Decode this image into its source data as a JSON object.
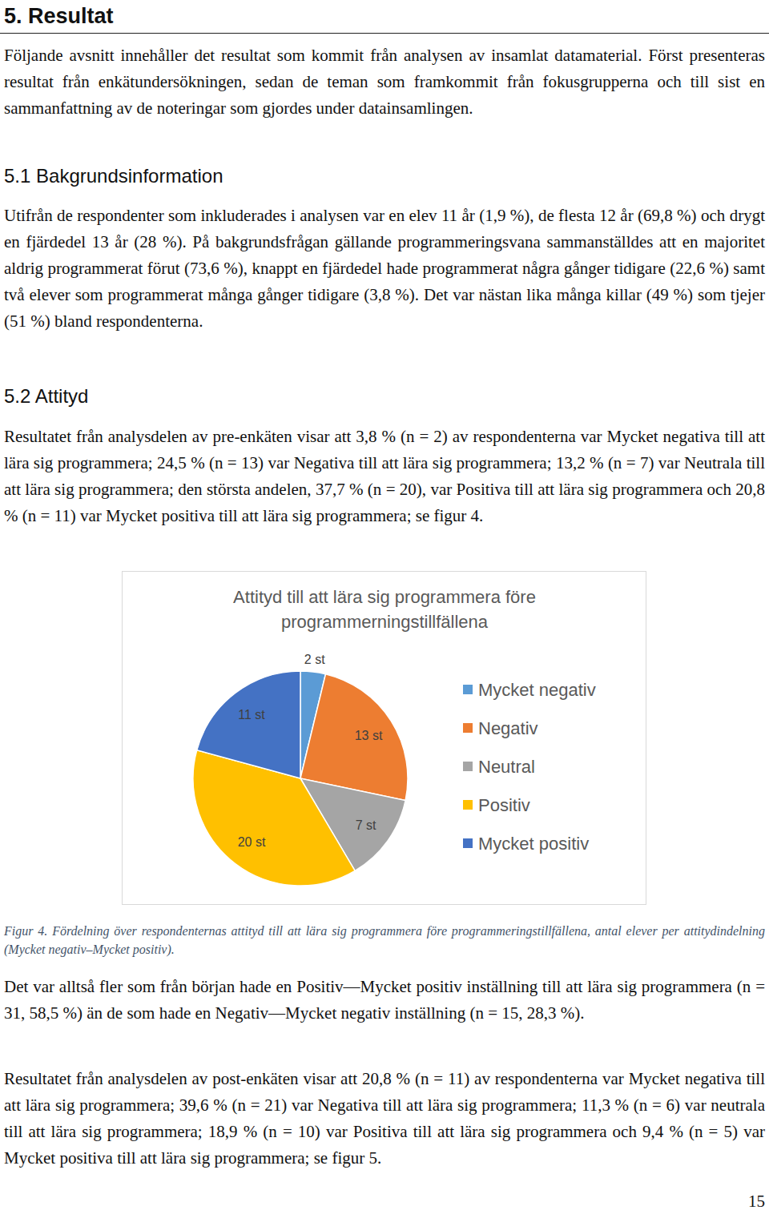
{
  "heading": "5. Resultat",
  "intro": "Följande avsnitt innehåller det resultat som kommit från analysen av insamlat datamaterial. Först presenteras resultat från enkätundersökningen, sedan de teman som framkommit från fokusgrupperna och till sist en sammanfattning av de noteringar som gjordes under datainsamlingen.",
  "sections": [
    {
      "title": "5.1 Bakgrundsinformation",
      "paragraphs": [
        "Utifrån de respondenter som inkluderades i analysen var en elev 11 år (1,9 %), de flesta 12 år (69,8 %) och drygt en fjärdedel 13 år (28 %). På bakgrundsfrågan gällande programmeringsvana sammanställdes att en majoritet aldrig programmerat förut (73,6 %), knappt en fjärdedel hade programmerat några gånger tidigare (22,6 %) samt två elever som programmerat många gånger tidigare (3,8 %). Det var nästan lika många killar (49 %) som tjejer (51 %) bland respondenterna."
      ]
    },
    {
      "title": "5.2 Attityd",
      "paragraphs": [
        "Resultatet från analysdelen av pre-enkäten visar att 3,8 % (n = 2) av respondenterna var Mycket negativa till att lära sig programmera; 24,5 % (n = 13) var Negativa till att lära sig programmera; 13,2 % (n = 7) var Neutrala till att lära sig programmera; den största andelen, 37,7 % (n = 20), var Positiva till att lära sig programmera och 20,8 % (n = 11) var Mycket positiva till att lära sig programmera; se figur 4."
      ]
    }
  ],
  "chart_data": {
    "type": "pie",
    "title": "Attityd till att lära sig programmera före programmerningstillfällena",
    "categories": [
      "Mycket negativ",
      "Negativ",
      "Neutral",
      "Positiv",
      "Mycket positiv"
    ],
    "values": [
      2,
      13,
      7,
      20,
      11
    ],
    "value_labels": [
      "2 st",
      "13 st",
      "7 st",
      "20 st",
      "11 st"
    ],
    "colors": [
      "#5b9bd5",
      "#ed7d31",
      "#a5a5a5",
      "#ffc000",
      "#4472c4"
    ],
    "data_labels": true,
    "legend": "right"
  },
  "figure_caption": "Figur 4. Fördelning över respondenternas attityd till att lära sig programmera före programmeringstillfällena, antal elever per attitydindelning (Mycket negativ–Mycket positiv).",
  "after_figure": [
    "Det var alltså fler som från början hade en Positiv—Mycket positiv inställning till att lära sig programmera (n = 31, 58,5 %) än de som hade en Negativ—Mycket negativ inställning (n = 15, 28,3 %).",
    "Resultatet från analysdelen av post-enkäten visar att 20,8 % (n = 11) av respondenterna var Mycket negativa till att lära sig programmera; 39,6 % (n = 21) var Negativa till att lära sig programmera; 11,3 % (n = 6) var neutrala till att lära sig programmera; 18,9 % (n = 10) var Positiva till att lära sig programmera och 9,4 % (n = 5) var Mycket positiva till att lära sig programmera; se figur 5."
  ],
  "page_number": "15"
}
